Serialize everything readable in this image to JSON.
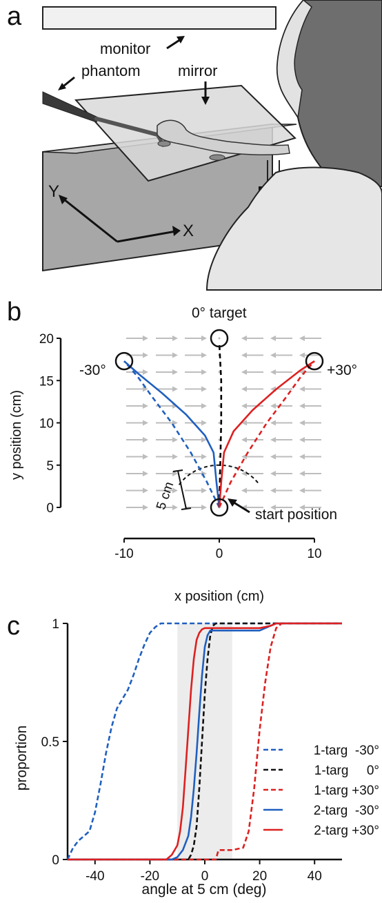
{
  "figure": {
    "panels": {
      "a": {
        "letter": "a",
        "labels": {
          "monitor": "monitor",
          "phantom": "phantom",
          "mirror": "mirror",
          "x_axis": "X",
          "y_axis": "Y"
        }
      },
      "b": {
        "letter": "b",
        "labels": {
          "target_0": "0° target",
          "target_neg30": "-30°",
          "target_pos30": "+30°",
          "start": "start position",
          "scale": "5 cm"
        }
      },
      "c": {
        "letter": "c"
      }
    }
  },
  "chart_data": [
    {
      "panel": "b",
      "type": "line",
      "xlabel": "x position (cm)",
      "ylabel": "y position (cm)",
      "xlim": [
        -10,
        10
      ],
      "ylim": [
        0,
        20
      ],
      "xticks": [
        -10,
        0,
        10
      ],
      "yticks": [
        0,
        5,
        10,
        15,
        20
      ],
      "force_field": {
        "rows_y": [
          0,
          2,
          4,
          6,
          8,
          10,
          12,
          14,
          16,
          18,
          20
        ],
        "direction": "toward x = 0"
      },
      "targets": [
        {
          "x": 0,
          "y": 20
        },
        {
          "x": -10,
          "y": 17.3
        },
        {
          "x": 10,
          "y": 17.3
        },
        {
          "x": 0,
          "y": 0
        }
      ],
      "arc_radius_cm": 5,
      "series": [
        {
          "color": "#1f5fbf",
          "dash": true,
          "points": [
            [
              0,
              0
            ],
            [
              -1.3,
              3
            ],
            [
              -3,
              6.5
            ],
            [
              -5,
              10
            ],
            [
              -7,
              13
            ],
            [
              -8.6,
              15.5
            ],
            [
              -10,
              17.3
            ]
          ]
        },
        {
          "color": "#1f5fbf",
          "dash": false,
          "points": [
            [
              0,
              0
            ],
            [
              -0.3,
              3
            ],
            [
              -0.6,
              6.5
            ],
            [
              -1.5,
              8.5
            ],
            [
              -3.5,
              11
            ],
            [
              -6,
              13.5
            ],
            [
              -8.5,
              15.8
            ],
            [
              -10,
              17.3
            ]
          ]
        },
        {
          "color": "#000000",
          "dash": true,
          "points": [
            [
              0,
              0
            ],
            [
              0.1,
              5
            ],
            [
              0.2,
              10
            ],
            [
              0.2,
              15
            ],
            [
              0,
              19.5
            ]
          ]
        },
        {
          "color": "#dd2020",
          "dash": true,
          "points": [
            [
              0,
              0
            ],
            [
              1.2,
              3
            ],
            [
              3,
              6.5
            ],
            [
              5,
              10
            ],
            [
              7,
              13
            ],
            [
              8.6,
              15.5
            ],
            [
              10,
              17.3
            ]
          ]
        },
        {
          "color": "#dd2020",
          "dash": false,
          "points": [
            [
              0,
              0
            ],
            [
              0.2,
              3
            ],
            [
              0.5,
              6.5
            ],
            [
              1.5,
              9
            ],
            [
              3.5,
              11.5
            ],
            [
              6,
              14
            ],
            [
              8.5,
              16.2
            ],
            [
              10,
              17.3
            ]
          ]
        }
      ]
    },
    {
      "panel": "c",
      "type": "line",
      "xlabel": "angle at 5 cm (deg)",
      "ylabel": "proportion",
      "xlim": [
        -50,
        50
      ],
      "ylim": [
        0,
        1
      ],
      "xticks": [
        -40,
        -20,
        0,
        20,
        40
      ],
      "yticks": [
        0,
        0.5,
        1
      ],
      "ytick_labels": [
        "0",
        "0.5",
        "1"
      ],
      "shaded_range": [
        -10,
        10
      ],
      "series": [
        {
          "name": "1-targ  -30°",
          "color": "#1f5fbf",
          "dash": true,
          "x": [
            -50,
            -48,
            -46,
            -44,
            -42,
            -40,
            -38,
            -36,
            -34,
            -32,
            -30,
            -28,
            -26,
            -24,
            -22,
            -20,
            -18,
            -16,
            -14,
            -12,
            -10,
            50
          ],
          "y": [
            0,
            0.05,
            0.08,
            0.1,
            0.12,
            0.2,
            0.32,
            0.45,
            0.56,
            0.64,
            0.68,
            0.72,
            0.78,
            0.85,
            0.91,
            0.96,
            0.985,
            1,
            1,
            1,
            1,
            1
          ]
        },
        {
          "name": "1-targ     0°",
          "color": "#111111",
          "dash": true,
          "x": [
            -50,
            -6,
            -5,
            -4,
            -3,
            -2,
            -1,
            0,
            1,
            2,
            3,
            4,
            50
          ],
          "y": [
            0,
            0,
            0.02,
            0.06,
            0.14,
            0.3,
            0.5,
            0.7,
            0.85,
            0.95,
            0.99,
            1,
            1
          ]
        },
        {
          "name": "1-targ +30°",
          "color": "#dd2020",
          "dash": true,
          "x": [
            -50,
            4,
            5,
            10,
            14,
            16,
            18,
            20,
            22,
            24,
            26,
            28,
            50
          ],
          "y": [
            0,
            0,
            0.04,
            0.04,
            0.05,
            0.12,
            0.3,
            0.55,
            0.75,
            0.9,
            0.98,
            1,
            1
          ]
        },
        {
          "name": "2-targ  -30°",
          "color": "#1f5fbf",
          "dash": false,
          "x": [
            -50,
            -12,
            -10,
            -8,
            -6,
            -5,
            -4,
            -3,
            -2,
            -1,
            0,
            1,
            2,
            4,
            10,
            20,
            22,
            24,
            26,
            27,
            50
          ],
          "y": [
            0,
            0,
            0.01,
            0.04,
            0.1,
            0.18,
            0.3,
            0.45,
            0.62,
            0.78,
            0.9,
            0.95,
            0.97,
            0.97,
            0.97,
            0.97,
            0.98,
            0.99,
            1,
            1,
            1
          ]
        },
        {
          "name": "2-targ +30°",
          "color": "#dd2020",
          "dash": false,
          "x": [
            -50,
            -14,
            -12,
            -10,
            -9,
            -8,
            -7,
            -6,
            -5,
            -4,
            -3,
            -2,
            -1,
            0,
            1,
            2,
            10,
            20,
            22,
            24,
            26,
            50
          ],
          "y": [
            0,
            0,
            0.02,
            0.06,
            0.12,
            0.22,
            0.38,
            0.55,
            0.72,
            0.85,
            0.93,
            0.96,
            0.975,
            0.98,
            0.98,
            0.98,
            0.98,
            0.98,
            0.985,
            0.99,
            1,
            1
          ]
        }
      ]
    }
  ]
}
